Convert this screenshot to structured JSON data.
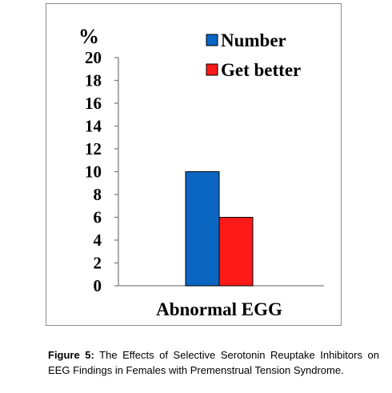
{
  "caption": {
    "label": "Figure 5:",
    "text": "The Effects of Selective Serotonin Reuptake Inhibitors on EEG Findings in Females with Premenstrual Tension Syndrome."
  },
  "chart_data": {
    "type": "bar",
    "title": "",
    "xlabel": "",
    "ylabel": "%",
    "ylim": [
      0,
      20
    ],
    "yticks": [
      "0",
      "2",
      "4",
      "6",
      "8",
      "10",
      "12",
      "14",
      "16",
      "18",
      "20"
    ],
    "categories": [
      "Abnormal EGG"
    ],
    "series": [
      {
        "name": "Number",
        "values": [
          10
        ],
        "color": "#0b66c2"
      },
      {
        "name": "Get better",
        "values": [
          6
        ],
        "color": "#ff1a1a"
      }
    ],
    "grid": false,
    "legend": "top-right"
  }
}
